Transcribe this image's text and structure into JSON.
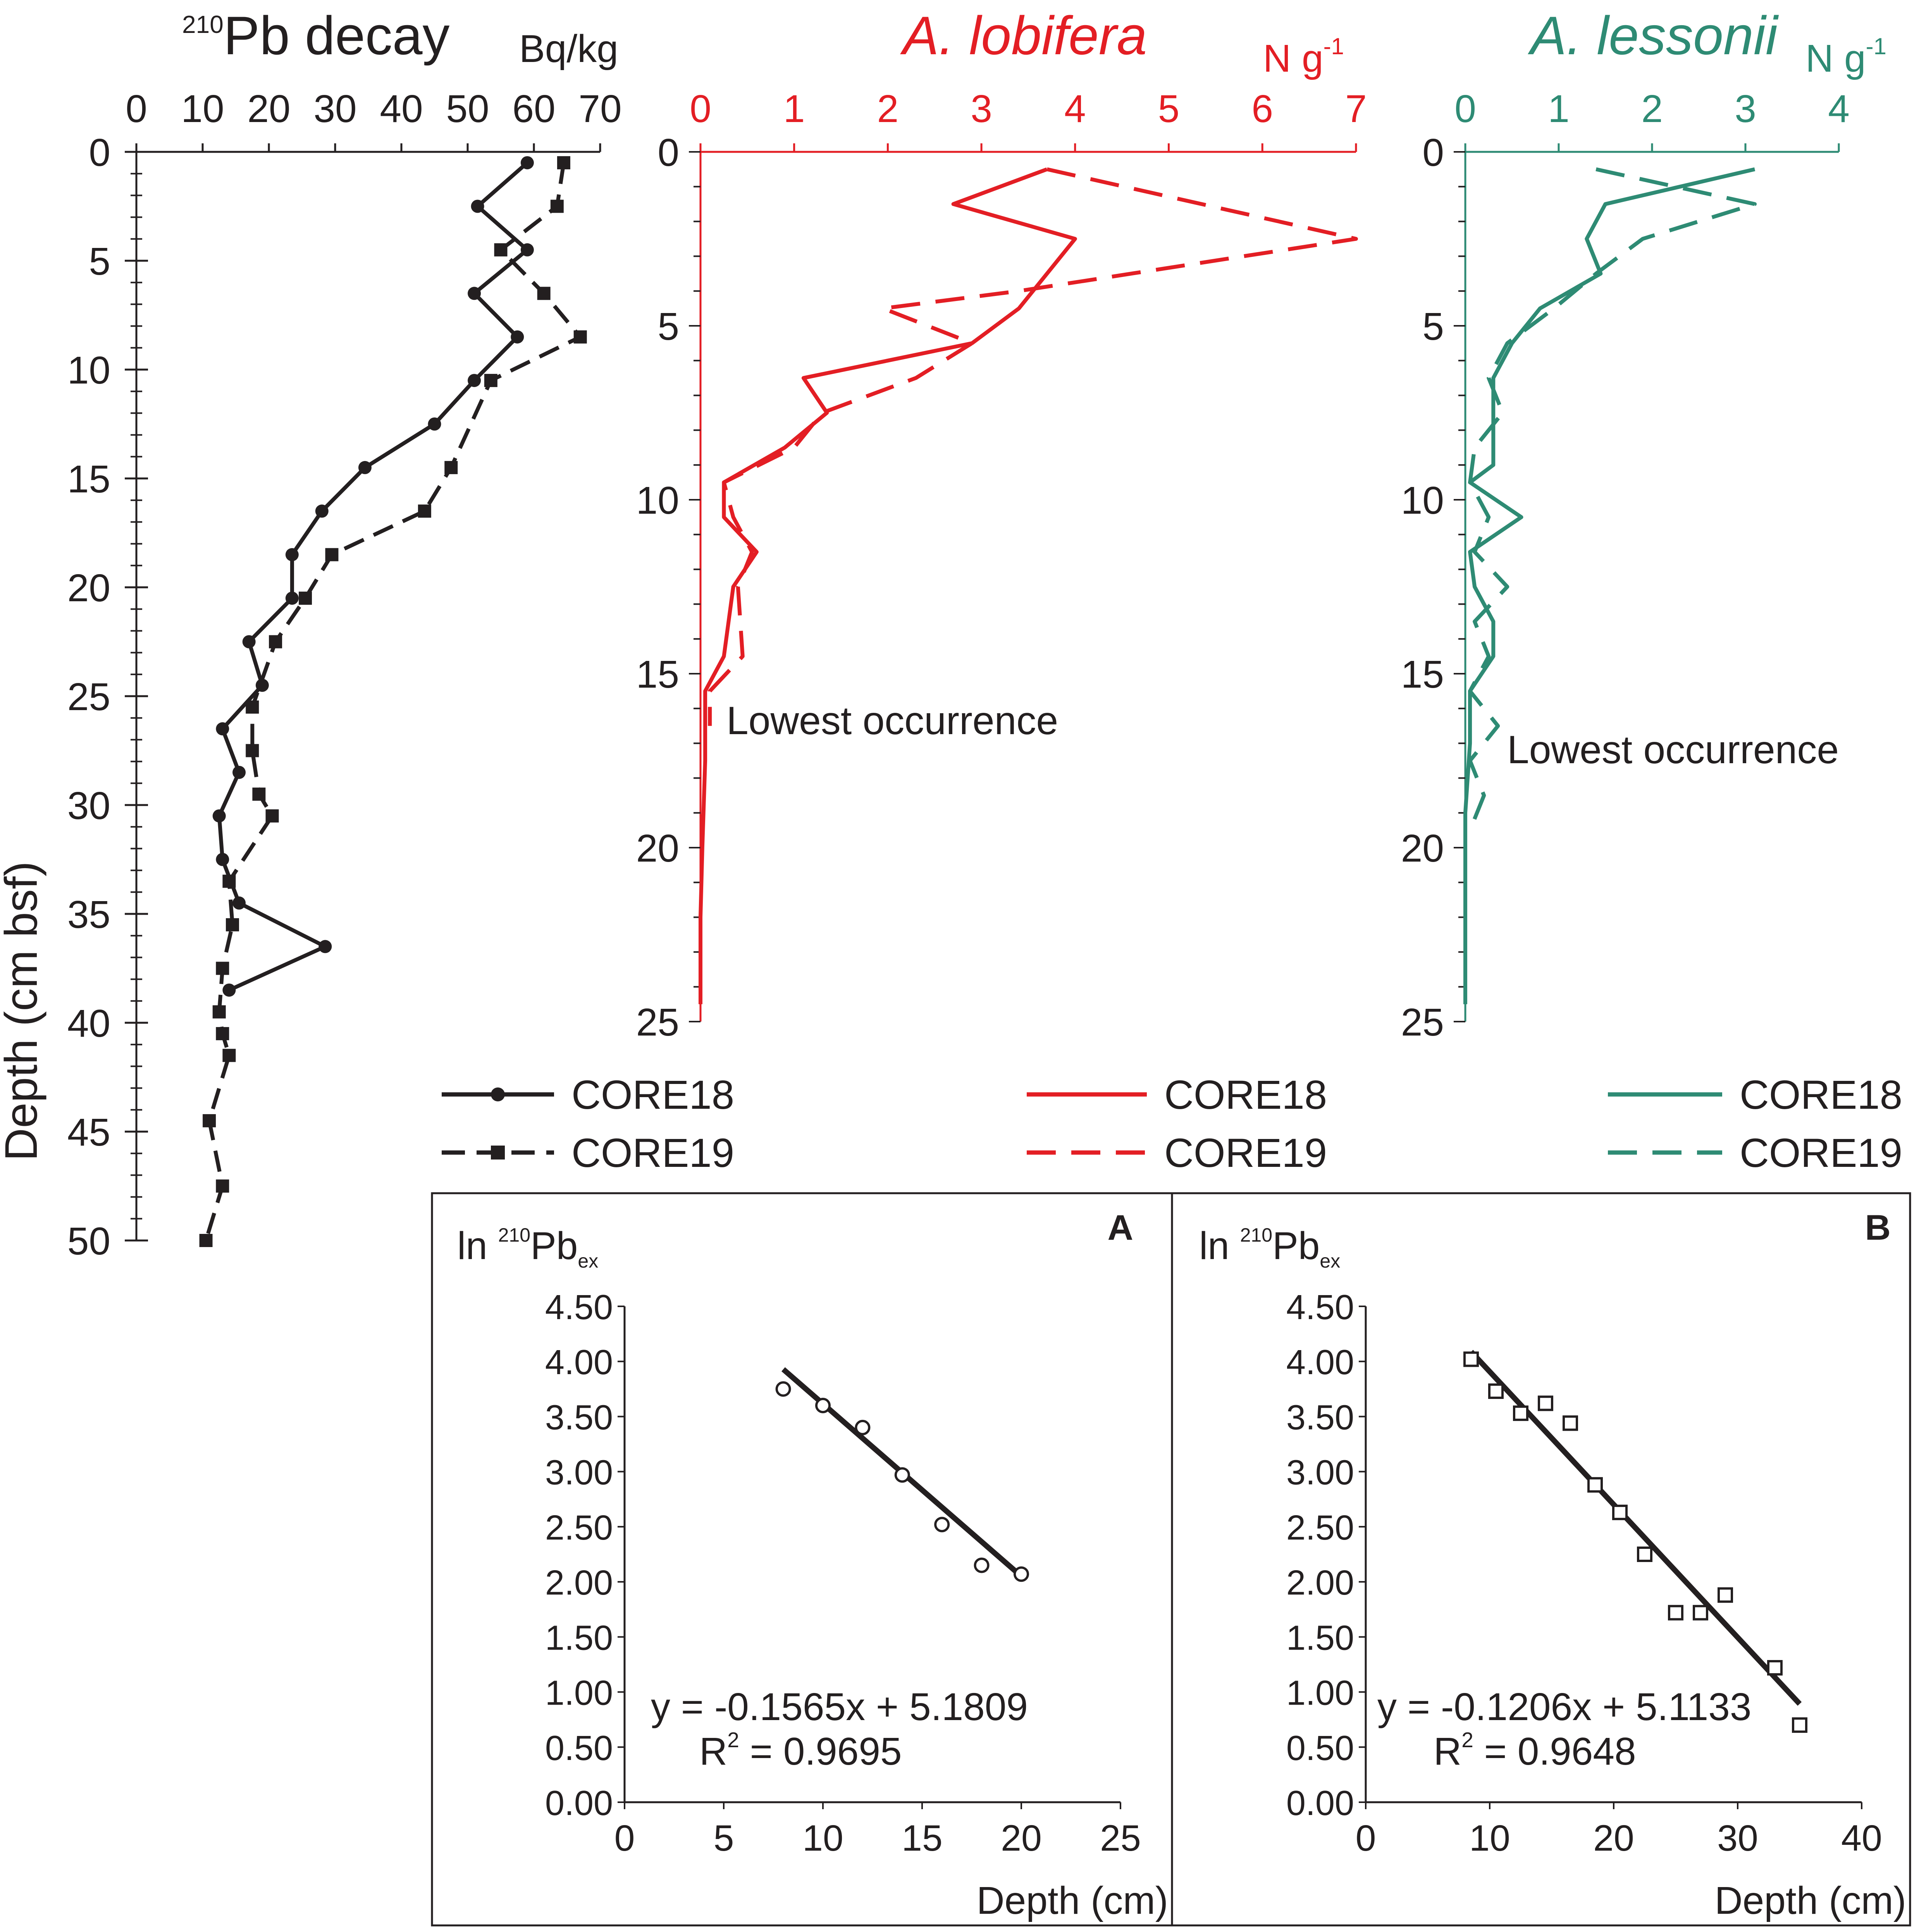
{
  "colors": {
    "black": "#231f20",
    "red": "#e31e24",
    "teal": "#2e8b74"
  },
  "y_axis": {
    "label": "Depth (cm bsf)",
    "ticks": [
      "0",
      "5",
      "10",
      "15",
      "20",
      "25",
      "30",
      "35",
      "40",
      "45",
      "50"
    ]
  },
  "panel_pb": {
    "title_sup": "210",
    "title_main": "Pb decay",
    "unit": "Bq/kg",
    "ticks": [
      "0",
      "10",
      "20",
      "30",
      "40",
      "50",
      "60",
      "70"
    ],
    "legend": [
      "CORE18",
      "CORE19"
    ]
  },
  "panel_lob": {
    "title": "A. lobifera",
    "unit_main": "N g",
    "unit_sup": "-1",
    "ticks": [
      "0",
      "1",
      "2",
      "3",
      "4",
      "5",
      "6",
      "7"
    ],
    "y_ticks": [
      "0",
      "5",
      "10",
      "15",
      "20",
      "25"
    ],
    "annotation": "Lowest occurrence",
    "legend": [
      "CORE18",
      "CORE19"
    ]
  },
  "panel_les": {
    "title": "A. lessonii",
    "unit_main": "N g",
    "unit_sup": "-1",
    "ticks": [
      "0",
      "1",
      "2",
      "3",
      "4"
    ],
    "y_ticks": [
      "0",
      "5",
      "10",
      "15",
      "20",
      "25"
    ],
    "annotation": "Lowest occurrence",
    "legend": [
      "CORE18",
      "CORE19"
    ]
  },
  "inset_a": {
    "letter": "A",
    "ylabel_main": "ln ",
    "ylabel_sup": "210",
    "ylabel_pb": "Pb",
    "ylabel_sub": "ex",
    "y_ticks": [
      "4.50",
      "4.00",
      "3.50",
      "3.00",
      "2.50",
      "2.00",
      "1.50",
      "1.00",
      "0.50",
      "0.00"
    ],
    "x_ticks": [
      "0",
      "5",
      "10",
      "15",
      "20",
      "25"
    ],
    "xlabel": "Depth (cm)",
    "equation": "y = -0.1565x + 5.1809",
    "r2_main": "R",
    "r2_sup": "2",
    "r2_value": " = 0.9695"
  },
  "inset_b": {
    "letter": "B",
    "ylabel_main": "ln ",
    "ylabel_sup": "210",
    "ylabel_pb": "Pb",
    "ylabel_sub": "ex",
    "y_ticks": [
      "4.50",
      "4.00",
      "3.50",
      "3.00",
      "2.50",
      "2.00",
      "1.50",
      "1.00",
      "0.50",
      "0.00"
    ],
    "x_ticks": [
      "0",
      "10",
      "20",
      "30",
      "40"
    ],
    "xlabel": "Depth (cm)",
    "equation": "y = -0.1206x + 5.1133",
    "r2_main": "R",
    "r2_sup": "2",
    "r2_value": " = 0.9648"
  },
  "chart_data": [
    {
      "type": "line",
      "xlabel": "Bq/kg",
      "ylabel": "Depth (cm bsf)",
      "xlim": [
        0,
        70
      ],
      "ylim": [
        50,
        0
      ],
      "series": [
        {
          "name": "CORE18",
          "style": "solid-circle",
          "x": [
            59,
            51.5,
            59,
            51,
            57.5,
            51,
            45,
            34.5,
            28,
            23.5,
            23.5,
            17,
            19,
            13,
            15.5,
            12.5,
            13,
            15.5,
            28.5,
            14
          ],
          "y": [
            0.5,
            2.5,
            4.5,
            6.5,
            8.5,
            10.5,
            12.5,
            14.5,
            16.5,
            18.5,
            20.5,
            22.5,
            24.5,
            26.5,
            28.5,
            30.5,
            32.5,
            34.5,
            36.5,
            38.5
          ]
        },
        {
          "name": "CORE19",
          "style": "dashed-square",
          "x": [
            64.5,
            63.5,
            55,
            61.5,
            67,
            53.5,
            47.5,
            43.5,
            29.5,
            25.5,
            21,
            17.5,
            17.5,
            18.5,
            20.5,
            14,
            14.5,
            13,
            12.5,
            13,
            14,
            11,
            13,
            10.5
          ],
          "y": [
            0.5,
            2.5,
            4.5,
            6.5,
            8.5,
            10.5,
            14.5,
            16.5,
            18.5,
            20.5,
            22.5,
            25.5,
            27.5,
            29.5,
            30.5,
            33.5,
            35.5,
            37.5,
            39.5,
            40.5,
            41.5,
            44.5,
            47.5,
            50
          ]
        }
      ]
    },
    {
      "type": "line",
      "title": "A. lobifera",
      "xlabel": "N g-1",
      "xlim": [
        0,
        7
      ],
      "ylim": [
        25,
        0
      ],
      "series": [
        {
          "name": "CORE18",
          "style": "solid",
          "x": [
            3.7,
            2.7,
            4.0,
            3.4,
            2.9,
            1.1,
            1.35,
            0.9,
            0.25,
            0.25,
            0.6,
            0.35,
            0.25,
            0.05,
            0.05,
            0.02,
            0,
            0
          ],
          "y": [
            0.5,
            1.5,
            2.5,
            4.5,
            5.5,
            6.5,
            7.5,
            8.5,
            9.5,
            10.5,
            11.5,
            12.5,
            14.5,
            15.5,
            17.5,
            20,
            22,
            24.5
          ]
        },
        {
          "name": "CORE19",
          "style": "dashed",
          "x": [
            3.7,
            7.0,
            3.4,
            1.95,
            2.9,
            2.3,
            1.3,
            1.0,
            0.25,
            0.35,
            0.55,
            0.4,
            0.45,
            0.1,
            0.1
          ],
          "y": [
            0.5,
            2.5,
            4.0,
            4.5,
            5.5,
            6.5,
            7.5,
            8.5,
            9.5,
            10.5,
            11.5,
            12.5,
            14.5,
            15.5,
            16.5
          ]
        }
      ]
    },
    {
      "type": "line",
      "title": "A. lessonii",
      "xlabel": "N g-1",
      "xlim": [
        0,
        4
      ],
      "ylim": [
        25,
        0
      ],
      "series": [
        {
          "name": "CORE18",
          "style": "solid",
          "x": [
            3.1,
            1.5,
            1.3,
            1.45,
            0.8,
            0.5,
            0.3,
            0.3,
            0.3,
            0.3,
            0.05,
            0.6,
            0.05,
            0.1,
            0.3,
            0.3,
            0.05,
            0.05,
            0,
            0,
            0,
            0
          ],
          "y": [
            0.5,
            1.5,
            2.5,
            3.5,
            4.5,
            5.5,
            6.5,
            7.5,
            8.5,
            9,
            9.5,
            10.5,
            11.5,
            12.5,
            13.5,
            14.5,
            15.5,
            17,
            19,
            21,
            23,
            24.5
          ]
        },
        {
          "name": "CORE19",
          "style": "dashed",
          "x": [
            1.4,
            3.1,
            1.9,
            1.4,
            0.95,
            0.45,
            0.25,
            0.4,
            0.1,
            0.05,
            0.25,
            0.1,
            0.45,
            0.1,
            0.25,
            0.05,
            0.35,
            0.05,
            0.2,
            0.05
          ],
          "y": [
            0.5,
            1.5,
            2.5,
            3.5,
            4.5,
            5.5,
            6.5,
            7.5,
            8.5,
            9.5,
            10.5,
            11.5,
            12.5,
            13.5,
            14.5,
            15.5,
            16.5,
            17.5,
            18.5,
            19.5
          ]
        }
      ]
    },
    {
      "type": "scatter",
      "panel": "A",
      "xlabel": "Depth (cm)",
      "ylabel": "ln 210Pbex",
      "xlim": [
        0,
        25
      ],
      "ylim": [
        0,
        4.5
      ],
      "points": {
        "x": [
          8,
          10,
          12,
          14,
          16,
          18,
          20
        ],
        "y": [
          3.75,
          3.6,
          3.4,
          2.97,
          2.52,
          2.15,
          2.07
        ]
      },
      "fit": {
        "slope": -0.1565,
        "intercept": 5.1809,
        "r2": 0.9695,
        "x_range": [
          8,
          20
        ]
      }
    },
    {
      "type": "scatter",
      "panel": "B",
      "xlabel": "Depth (cm)",
      "ylabel": "ln 210Pbex",
      "xlim": [
        0,
        40
      ],
      "ylim": [
        0,
        4.5
      ],
      "points": {
        "x": [
          8.5,
          10.5,
          12.5,
          14.5,
          16.5,
          18.5,
          20.5,
          22.5,
          25,
          27,
          29,
          33,
          35
        ],
        "y": [
          4.02,
          3.73,
          3.53,
          3.62,
          3.44,
          2.88,
          2.63,
          2.25,
          1.72,
          1.72,
          1.88,
          1.22,
          0.7
        ]
      },
      "fit": {
        "slope": -0.1206,
        "intercept": 5.1133,
        "r2": 0.9648,
        "x_range": [
          8.5,
          35
        ]
      }
    }
  ]
}
